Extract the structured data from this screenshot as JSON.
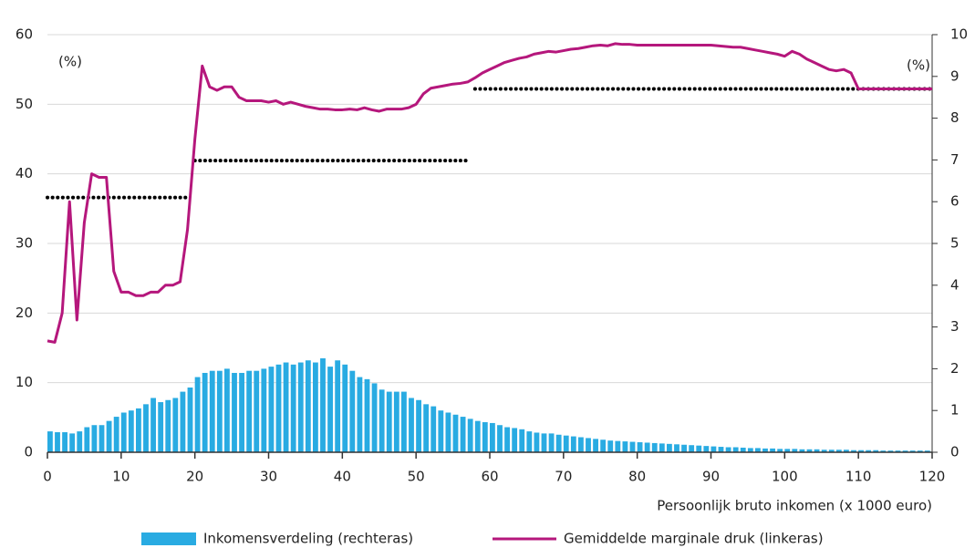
{
  "chart_data": {
    "type": "bar-line",
    "xlabel": "Persoonlijk bruto inkomen (x 1000 euro)",
    "ylabel": "(%)",
    "y2label": "(%)",
    "xlim": [
      0,
      120
    ],
    "xticks": [
      0,
      10,
      20,
      30,
      40,
      50,
      60,
      70,
      80,
      90,
      100,
      110,
      120
    ],
    "ylim": [
      0,
      60
    ],
    "yticks": [
      0,
      10,
      20,
      30,
      40,
      50,
      60
    ],
    "y2lim": [
      0,
      10
    ],
    "y2ticks": [
      0,
      1,
      2,
      3,
      4,
      5,
      6,
      7,
      8,
      9,
      10
    ],
    "grid": true,
    "series": [
      {
        "name": "Inkomensverdeling (rechteras)",
        "color": "#29abe2",
        "kind": "bar",
        "axis": "y2",
        "x": [
          0,
          1,
          2,
          3,
          4,
          5,
          6,
          7,
          8,
          9,
          10,
          11,
          12,
          13,
          14,
          15,
          16,
          17,
          18,
          19,
          20,
          21,
          22,
          23,
          24,
          25,
          26,
          27,
          28,
          29,
          30,
          31,
          32,
          33,
          34,
          35,
          36,
          37,
          38,
          39,
          40,
          41,
          42,
          43,
          44,
          45,
          46,
          47,
          48,
          49,
          50,
          51,
          52,
          53,
          54,
          55,
          56,
          57,
          58,
          59,
          60,
          61,
          62,
          63,
          64,
          65,
          66,
          67,
          68,
          69,
          70,
          71,
          72,
          73,
          74,
          75,
          76,
          77,
          78,
          79,
          80,
          81,
          82,
          83,
          84,
          85,
          86,
          87,
          88,
          89,
          90,
          91,
          92,
          93,
          94,
          95,
          96,
          97,
          98,
          99,
          100,
          101,
          102,
          103,
          104,
          105,
          106,
          107,
          108,
          109,
          110,
          111,
          112,
          113,
          114,
          115,
          116,
          117,
          118,
          119
        ],
        "values": [
          0.5,
          0.48,
          0.48,
          0.45,
          0.5,
          0.6,
          0.65,
          0.65,
          0.75,
          0.85,
          0.95,
          1.0,
          1.05,
          1.15,
          1.3,
          1.2,
          1.25,
          1.3,
          1.45,
          1.55,
          1.8,
          1.9,
          1.95,
          1.95,
          2.0,
          1.9,
          1.9,
          1.95,
          1.95,
          2.0,
          2.05,
          2.1,
          2.15,
          2.1,
          2.15,
          2.2,
          2.15,
          2.25,
          2.05,
          2.2,
          2.1,
          1.95,
          1.8,
          1.75,
          1.65,
          1.5,
          1.45,
          1.45,
          1.45,
          1.3,
          1.25,
          1.15,
          1.1,
          1.0,
          0.95,
          0.9,
          0.85,
          0.8,
          0.75,
          0.72,
          0.7,
          0.65,
          0.6,
          0.58,
          0.55,
          0.5,
          0.47,
          0.45,
          0.45,
          0.42,
          0.4,
          0.38,
          0.36,
          0.34,
          0.32,
          0.3,
          0.28,
          0.27,
          0.26,
          0.25,
          0.24,
          0.23,
          0.22,
          0.21,
          0.2,
          0.19,
          0.18,
          0.17,
          0.16,
          0.15,
          0.14,
          0.13,
          0.12,
          0.12,
          0.11,
          0.1,
          0.1,
          0.09,
          0.09,
          0.08,
          0.08,
          0.08,
          0.07,
          0.07,
          0.07,
          0.06,
          0.06,
          0.06,
          0.06,
          0.05,
          0.05,
          0.05,
          0.05,
          0.04,
          0.04,
          0.04,
          0.04,
          0.04,
          0.04,
          0.04
        ]
      },
      {
        "name": "Gemiddelde marginale druk (linkeras)",
        "color": "#b5177c",
        "kind": "line",
        "axis": "y",
        "x": [
          0,
          1,
          2,
          3,
          4,
          5,
          6,
          7,
          8,
          9,
          10,
          11,
          12,
          13,
          14,
          15,
          16,
          17,
          18,
          19,
          20,
          21,
          22,
          23,
          24,
          25,
          26,
          27,
          28,
          29,
          30,
          31,
          32,
          33,
          34,
          35,
          36,
          37,
          38,
          39,
          40,
          41,
          42,
          43,
          44,
          45,
          46,
          47,
          48,
          49,
          50,
          51,
          52,
          53,
          54,
          55,
          56,
          57,
          58,
          59,
          60,
          61,
          62,
          63,
          64,
          65,
          66,
          67,
          68,
          69,
          70,
          71,
          72,
          73,
          74,
          75,
          76,
          77,
          78,
          79,
          80,
          81,
          82,
          83,
          84,
          85,
          86,
          87,
          88,
          89,
          90,
          91,
          92,
          93,
          94,
          95,
          96,
          97,
          98,
          99,
          100,
          101,
          102,
          103,
          104,
          105,
          106,
          107,
          108,
          109,
          110,
          111,
          112,
          113,
          114,
          115,
          116,
          117,
          118,
          119,
          120
        ],
        "values": [
          16,
          15.8,
          20,
          36,
          19,
          33,
          40,
          39.5,
          39.5,
          26,
          23,
          23,
          22.5,
          22.5,
          23,
          23,
          24,
          24,
          24.5,
          32,
          45,
          55.5,
          52.5,
          52,
          52.5,
          52.5,
          51,
          50.5,
          50.5,
          50.5,
          50.3,
          50.5,
          50,
          50.3,
          50,
          49.7,
          49.5,
          49.3,
          49.3,
          49.2,
          49.2,
          49.3,
          49.2,
          49.5,
          49.2,
          49,
          49.3,
          49.3,
          49.3,
          49.5,
          50,
          51.5,
          52.3,
          52.5,
          52.7,
          52.9,
          53,
          53.2,
          53.8,
          54.5,
          55,
          55.5,
          56,
          56.3,
          56.6,
          56.8,
          57.2,
          57.4,
          57.6,
          57.5,
          57.7,
          57.9,
          58,
          58.2,
          58.4,
          58.5,
          58.4,
          58.7,
          58.6,
          58.6,
          58.5,
          58.5,
          58.5,
          58.5,
          58.5,
          58.5,
          58.5,
          58.5,
          58.5,
          58.5,
          58.5,
          58.4,
          58.3,
          58.2,
          58.2,
          58,
          57.8,
          57.6,
          57.4,
          57.2,
          56.9,
          57.6,
          57.2,
          56.5,
          56,
          55.5,
          55,
          54.8,
          55,
          54.5,
          52.2,
          52.2,
          52.2,
          52.2,
          52.2,
          52.2,
          52.2,
          52.2,
          52.2,
          52.2,
          52.2
        ]
      }
    ],
    "steps": [
      {
        "x": [
          0,
          19
        ],
        "value": 36.6,
        "color": "#000000"
      },
      {
        "x": [
          20,
          57
        ],
        "value": 41.9,
        "color": "#000000"
      },
      {
        "x": [
          58,
          120
        ],
        "value": 52.2,
        "color": "#000000"
      }
    ]
  }
}
